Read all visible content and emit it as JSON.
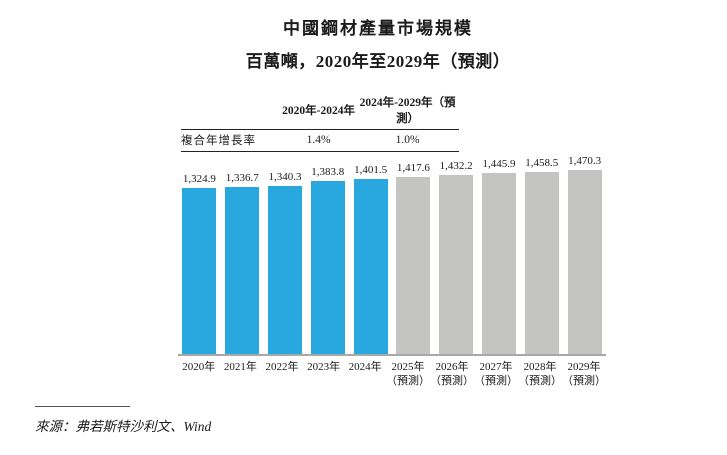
{
  "header": {
    "title": "中國鋼材產量市場規模",
    "subtitle": "百萬噸，2020年至2029年（預測）"
  },
  "cagr_table": {
    "row_label": "複合年增長率",
    "columns": [
      {
        "period": "2020年-2024年",
        "value": "1.4%"
      },
      {
        "period": "2024年-2029年（預測）",
        "value": "1.0%"
      }
    ]
  },
  "chart_data": {
    "type": "bar",
    "title": "中國鋼材產量市場規模",
    "unit_label": "百萬噸",
    "categories": [
      "2020年",
      "2021年",
      "2022年",
      "2023年",
      "2024年",
      "2025年（預測）",
      "2026年（預測）",
      "2027年（預測）",
      "2028年（預測）",
      "2029年（預測）"
    ],
    "values": [
      1324.9,
      1336.7,
      1340.3,
      1383.8,
      1401.5,
      1417.6,
      1432.2,
      1445.9,
      1458.5,
      1470.3
    ],
    "ylim": [
      0,
      1470.3
    ],
    "grid": false,
    "legend": "none",
    "colors": {
      "actual": "#29A8DF",
      "forecast": "#C4C4C2",
      "axis_line": "#A8A8A8"
    },
    "bars": [
      {
        "year": "2020年",
        "sublabel": "",
        "value": 1324.9,
        "label": "1,324.9",
        "forecast": false
      },
      {
        "year": "2021年",
        "sublabel": "",
        "value": 1336.7,
        "label": "1,336.7",
        "forecast": false
      },
      {
        "year": "2022年",
        "sublabel": "",
        "value": 1340.3,
        "label": "1,340.3",
        "forecast": false
      },
      {
        "year": "2023年",
        "sublabel": "",
        "value": 1383.8,
        "label": "1,383.8",
        "forecast": false
      },
      {
        "year": "2024年",
        "sublabel": "",
        "value": 1401.5,
        "label": "1,401.5",
        "forecast": false
      },
      {
        "year": "2025年",
        "sublabel": "（預測）",
        "value": 1417.6,
        "label": "1,417.6",
        "forecast": true
      },
      {
        "year": "2026年",
        "sublabel": "（預測）",
        "value": 1432.2,
        "label": "1,432.2",
        "forecast": true
      },
      {
        "year": "2027年",
        "sublabel": "（預測）",
        "value": 1445.9,
        "label": "1,445.9",
        "forecast": true
      },
      {
        "year": "2028年",
        "sublabel": "（預測）",
        "value": 1458.5,
        "label": "1,458.5",
        "forecast": true
      },
      {
        "year": "2029年",
        "sublabel": "（預測）",
        "value": 1470.3,
        "label": "1,470.3",
        "forecast": true
      }
    ]
  },
  "source": {
    "text": "來源：弗若斯特沙利文、Wind"
  }
}
